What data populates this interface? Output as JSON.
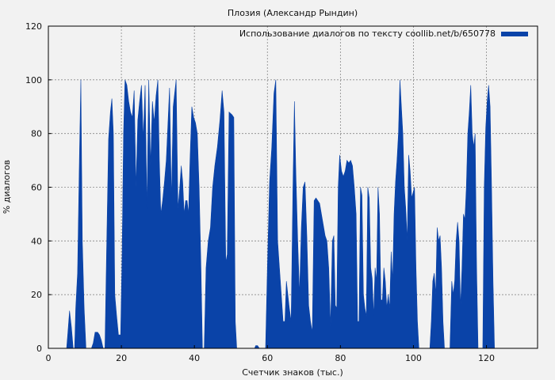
{
  "chart_data": {
    "type": "area",
    "title": "Плозия (Александр Рындин)",
    "xlabel": "Счетчик знаков (тыс.)",
    "ylabel": "% диалогов",
    "xlim": [
      0,
      134
    ],
    "ylim": [
      0,
      120
    ],
    "xticks": [
      0,
      20,
      40,
      60,
      80,
      100,
      120
    ],
    "yticks": [
      0,
      20,
      40,
      60,
      80,
      100,
      120
    ],
    "grid": true,
    "legend_position": "top-right",
    "series": [
      {
        "name": "Использование диалогов по тексту coollib.net/b/650778",
        "color": "#0a43a8",
        "points": [
          [
            0,
            0
          ],
          [
            5,
            0
          ],
          [
            5.3,
            5
          ],
          [
            5.8,
            14
          ],
          [
            6.3,
            8
          ],
          [
            6.8,
            0
          ],
          [
            7.2,
            0
          ],
          [
            7.5,
            15
          ],
          [
            8,
            28
          ],
          [
            8.5,
            70
          ],
          [
            8.9,
            100
          ],
          [
            9.3,
            40
          ],
          [
            9.8,
            15
          ],
          [
            10.3,
            0
          ],
          [
            11.8,
            0
          ],
          [
            12.3,
            2
          ],
          [
            12.8,
            6
          ],
          [
            13.5,
            6
          ],
          [
            14,
            5
          ],
          [
            14.5,
            3
          ],
          [
            15,
            0
          ],
          [
            15.5,
            0
          ],
          [
            16,
            40
          ],
          [
            16.5,
            78
          ],
          [
            17,
            88
          ],
          [
            17.4,
            93
          ],
          [
            17.8,
            80
          ],
          [
            18.2,
            20
          ],
          [
            18.7,
            12
          ],
          [
            19.2,
            5
          ],
          [
            19.8,
            5
          ],
          [
            20.2,
            35
          ],
          [
            20.6,
            80
          ],
          [
            21,
            100
          ],
          [
            21.5,
            98
          ],
          [
            22,
            92
          ],
          [
            22.5,
            88
          ],
          [
            23,
            86
          ],
          [
            23.5,
            96
          ],
          [
            24,
            60
          ],
          [
            24.5,
            85
          ],
          [
            25,
            92
          ],
          [
            25.5,
            98
          ],
          [
            26,
            78
          ],
          [
            26.5,
            98
          ],
          [
            27,
            52
          ],
          [
            27.5,
            100
          ],
          [
            28,
            68
          ],
          [
            28.5,
            92
          ],
          [
            29,
            84
          ],
          [
            29.5,
            94
          ],
          [
            30,
            100
          ],
          [
            30.4,
            70
          ],
          [
            30.8,
            50
          ],
          [
            31.3,
            55
          ],
          [
            31.8,
            62
          ],
          [
            32.3,
            70
          ],
          [
            32.8,
            85
          ],
          [
            33.2,
            97
          ],
          [
            33.7,
            55
          ],
          [
            34.2,
            90
          ],
          [
            34.6,
            95
          ],
          [
            35,
            100
          ],
          [
            35.5,
            52
          ],
          [
            36,
            60
          ],
          [
            36.4,
            68
          ],
          [
            36.8,
            62
          ],
          [
            37.2,
            50
          ],
          [
            37.6,
            55
          ],
          [
            38,
            55
          ],
          [
            38.4,
            50
          ],
          [
            38.8,
            70
          ],
          [
            39.3,
            90
          ],
          [
            39.8,
            86
          ],
          [
            40.3,
            84
          ],
          [
            40.8,
            80
          ],
          [
            41.3,
            60
          ],
          [
            41.8,
            30
          ],
          [
            42.2,
            0
          ],
          [
            42.7,
            0
          ],
          [
            43.2,
            30
          ],
          [
            43.8,
            40
          ],
          [
            44.4,
            45
          ],
          [
            45,
            60
          ],
          [
            45.6,
            68
          ],
          [
            46.3,
            75
          ],
          [
            47,
            85
          ],
          [
            47.6,
            96
          ],
          [
            48.1,
            88
          ],
          [
            48.6,
            32
          ],
          [
            49,
            35
          ],
          [
            49.5,
            88
          ],
          [
            50.3,
            87
          ],
          [
            50.8,
            86
          ],
          [
            51.2,
            10
          ],
          [
            51.6,
            0
          ],
          [
            56.5,
            0
          ],
          [
            56.8,
            1
          ],
          [
            57.3,
            1
          ],
          [
            57.8,
            0
          ],
          [
            59.5,
            0
          ],
          [
            60,
            30
          ],
          [
            60.6,
            62
          ],
          [
            61.2,
            75
          ],
          [
            61.8,
            95
          ],
          [
            62.3,
            100
          ],
          [
            62.8,
            40
          ],
          [
            63.3,
            30
          ],
          [
            63.8,
            20
          ],
          [
            64.3,
            10
          ],
          [
            64.8,
            10
          ],
          [
            65.2,
            25
          ],
          [
            65.6,
            20
          ],
          [
            66,
            15
          ],
          [
            66.5,
            10
          ],
          [
            67,
            60
          ],
          [
            67.4,
            92
          ],
          [
            67.8,
            65
          ],
          [
            68.3,
            40
          ],
          [
            68.8,
            20
          ],
          [
            69.3,
            45
          ],
          [
            69.8,
            60
          ],
          [
            70.3,
            62
          ],
          [
            70.8,
            42
          ],
          [
            71.3,
            16
          ],
          [
            71.8,
            10
          ],
          [
            72.3,
            6
          ],
          [
            72.8,
            55
          ],
          [
            73.3,
            56
          ],
          [
            73.8,
            55
          ],
          [
            74.3,
            54
          ],
          [
            74.8,
            50
          ],
          [
            75.3,
            46
          ],
          [
            75.8,
            42
          ],
          [
            76.3,
            40
          ],
          [
            76.8,
            30
          ],
          [
            77.3,
            8
          ],
          [
            77.8,
            40
          ],
          [
            78.2,
            42
          ],
          [
            78.6,
            16
          ],
          [
            79,
            15
          ],
          [
            79.4,
            60
          ],
          [
            79.8,
            72
          ],
          [
            80.3,
            66
          ],
          [
            80.8,
            64
          ],
          [
            81.3,
            66
          ],
          [
            81.8,
            70
          ],
          [
            82.3,
            69
          ],
          [
            82.8,
            70
          ],
          [
            83.3,
            68
          ],
          [
            83.8,
            60
          ],
          [
            84.3,
            50
          ],
          [
            84.7,
            10
          ],
          [
            85.1,
            10
          ],
          [
            85.5,
            60
          ],
          [
            85.9,
            57
          ],
          [
            86.3,
            20
          ],
          [
            86.7,
            15
          ],
          [
            87.1,
            12
          ],
          [
            87.5,
            60
          ],
          [
            87.9,
            56
          ],
          [
            88.3,
            30
          ],
          [
            88.7,
            26
          ],
          [
            89.1,
            12
          ],
          [
            89.5,
            30
          ],
          [
            89.9,
            25
          ],
          [
            90.3,
            60
          ],
          [
            90.7,
            50
          ],
          [
            91.1,
            18
          ],
          [
            91.5,
            18
          ],
          [
            91.9,
            30
          ],
          [
            92.3,
            25
          ],
          [
            92.7,
            15
          ],
          [
            93.1,
            20
          ],
          [
            93.5,
            15
          ],
          [
            93.9,
            36
          ],
          [
            94.3,
            25
          ],
          [
            94.7,
            50
          ],
          [
            95.1,
            62
          ],
          [
            95.5,
            70
          ],
          [
            95.9,
            80
          ],
          [
            96.3,
            100
          ],
          [
            96.7,
            90
          ],
          [
            97.1,
            80
          ],
          [
            97.5,
            60
          ],
          [
            97.9,
            52
          ],
          [
            98.3,
            40
          ],
          [
            98.7,
            72
          ],
          [
            99.1,
            66
          ],
          [
            99.5,
            56
          ],
          [
            99.9,
            58
          ],
          [
            100.3,
            60
          ],
          [
            100.7,
            30
          ],
          [
            101.1,
            10
          ],
          [
            101.5,
            0
          ],
          [
            104.5,
            0
          ],
          [
            104.9,
            10
          ],
          [
            105.3,
            25
          ],
          [
            105.7,
            28
          ],
          [
            106.1,
            20
          ],
          [
            106.5,
            45
          ],
          [
            106.9,
            40
          ],
          [
            107.3,
            42
          ],
          [
            107.7,
            30
          ],
          [
            108.1,
            10
          ],
          [
            108.5,
            0
          ],
          [
            109,
            0
          ],
          [
            110,
            0
          ],
          [
            110.5,
            25
          ],
          [
            110.9,
            20
          ],
          [
            111.3,
            25
          ],
          [
            111.7,
            40
          ],
          [
            112.1,
            47
          ],
          [
            112.5,
            40
          ],
          [
            112.9,
            15
          ],
          [
            113.3,
            30
          ],
          [
            113.7,
            50
          ],
          [
            114.1,
            48
          ],
          [
            114.5,
            60
          ],
          [
            114.9,
            80
          ],
          [
            115.3,
            88
          ],
          [
            115.7,
            98
          ],
          [
            116.1,
            80
          ],
          [
            116.5,
            75
          ],
          [
            116.9,
            80
          ],
          [
            117.3,
            30
          ],
          [
            117.7,
            0
          ],
          [
            119,
            0
          ],
          [
            119.4,
            60
          ],
          [
            119.8,
            82
          ],
          [
            120.2,
            92
          ],
          [
            120.6,
            98
          ],
          [
            121,
            90
          ],
          [
            121.4,
            60
          ],
          [
            121.8,
            25
          ],
          [
            122.2,
            0
          ],
          [
            134,
            0
          ]
        ]
      }
    ]
  }
}
